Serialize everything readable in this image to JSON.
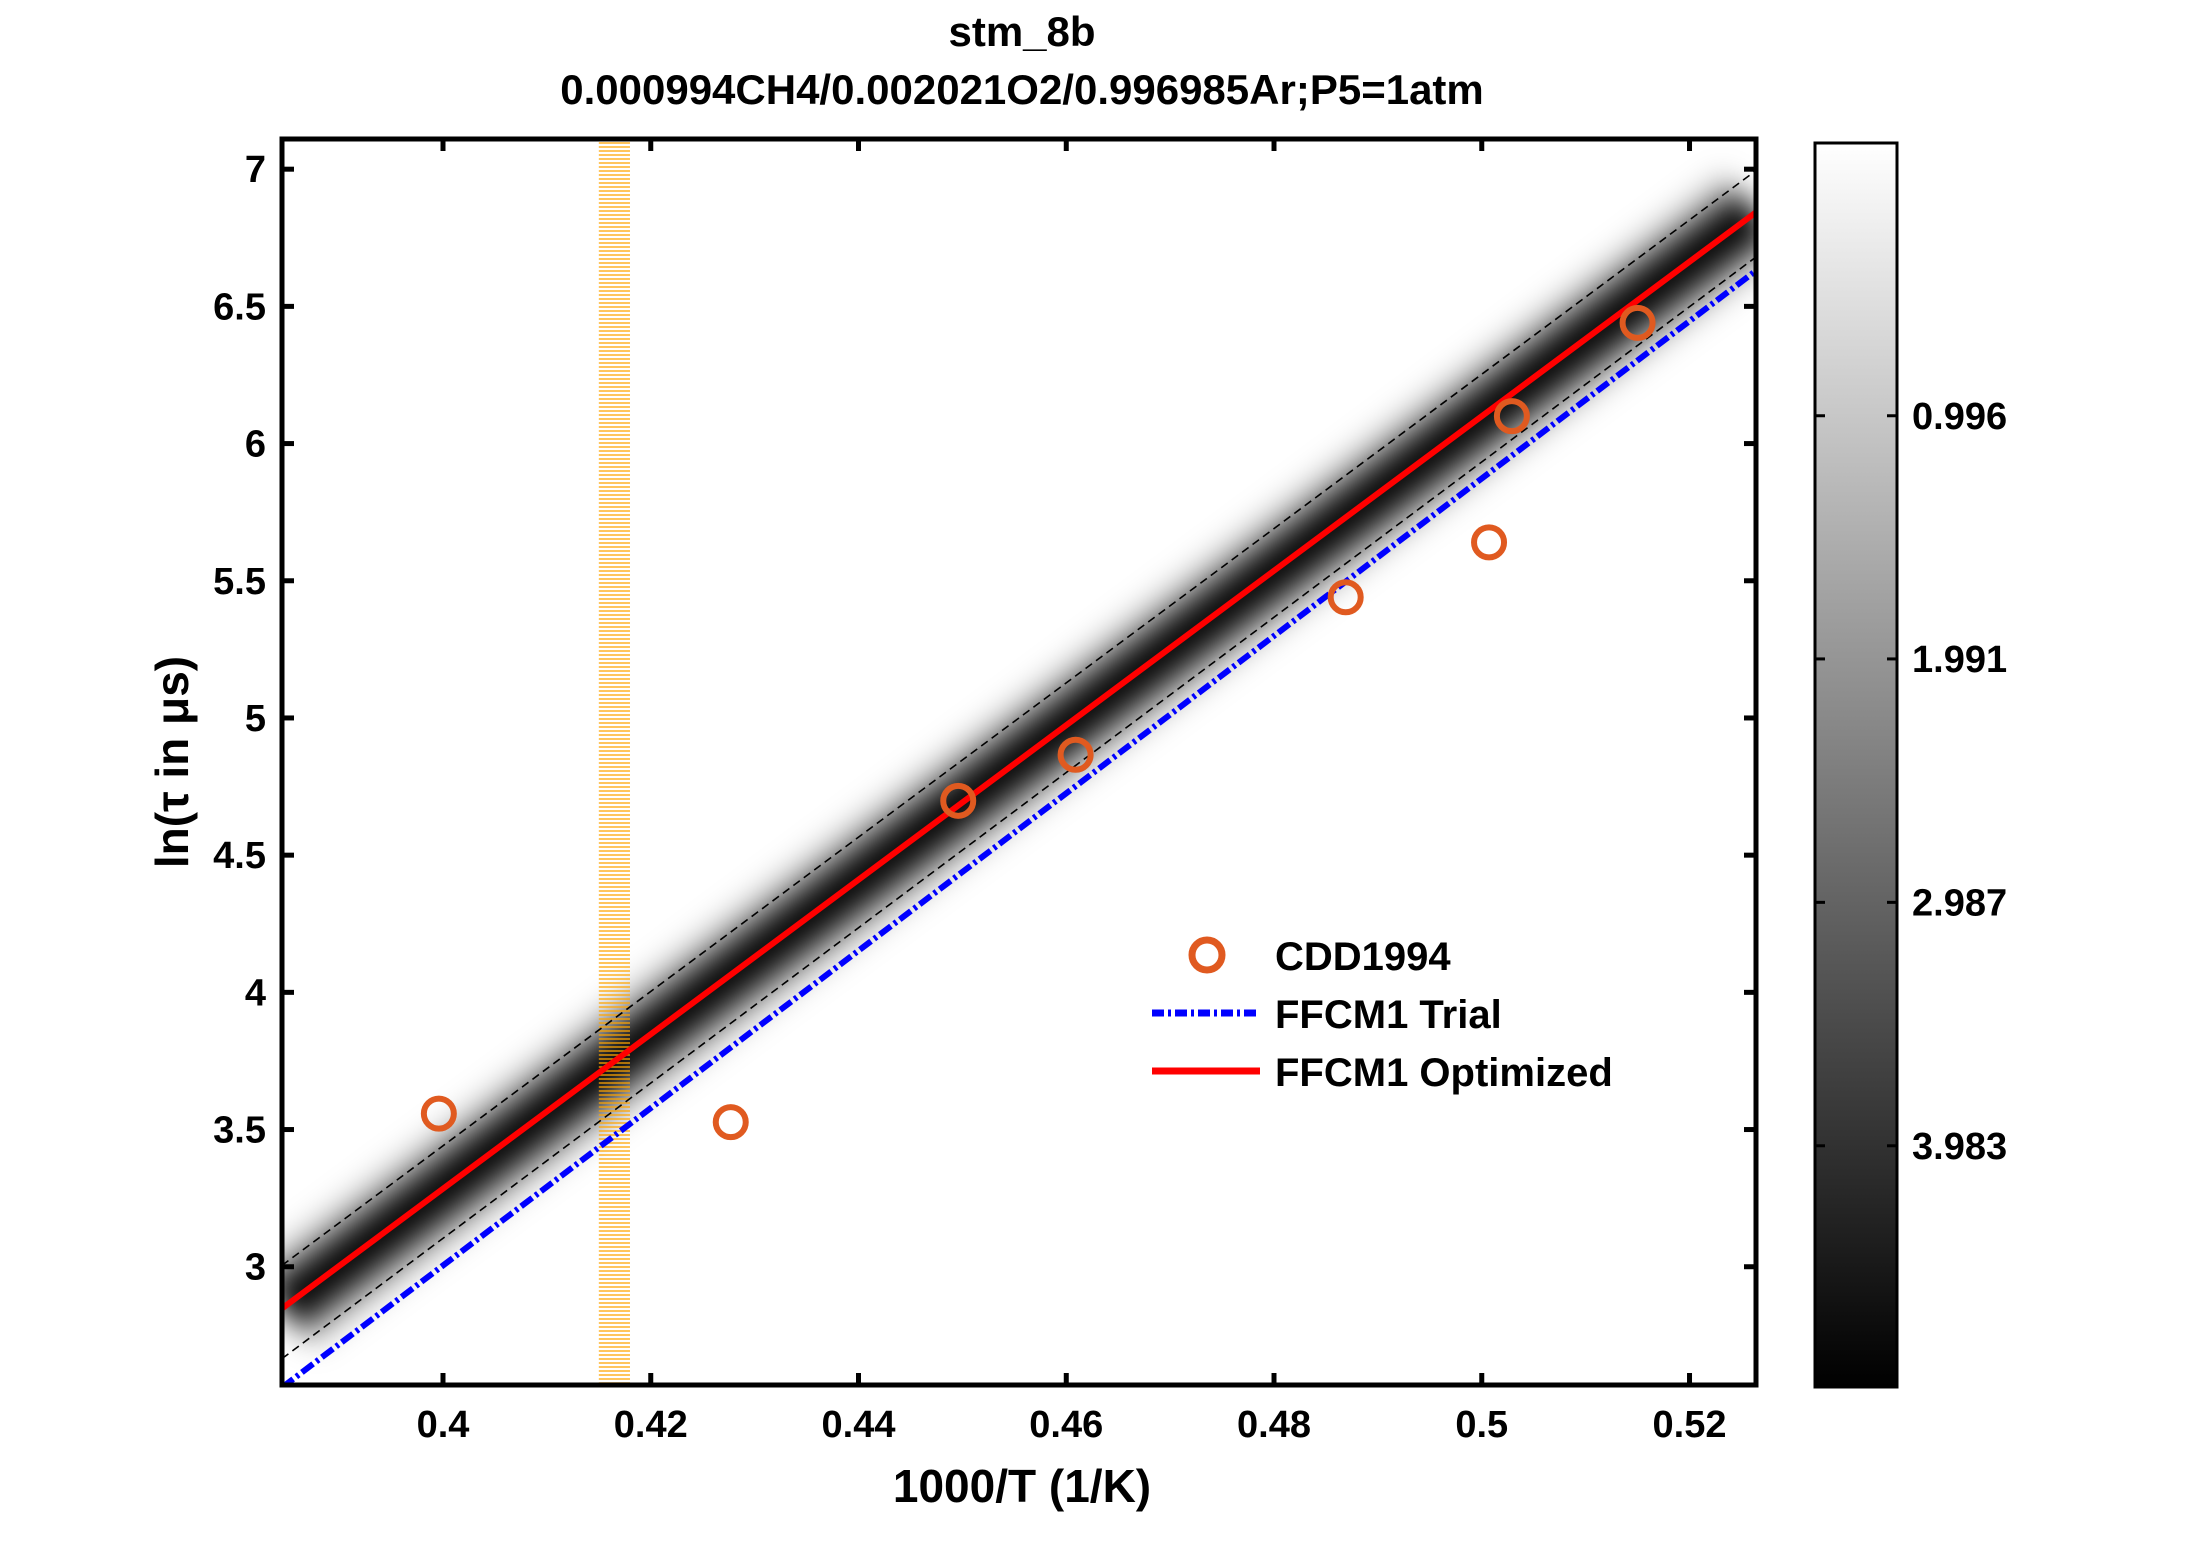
{
  "chart_data": {
    "type": "scatter",
    "title": "stm_8b",
    "subtitle": "0.000994CH4/0.002021O2/0.996985Ar;P5=1atm",
    "xlabel": "1000/T (1/K)",
    "ylabel": "ln(τ in μs)",
    "xlim": [
      0.3845,
      0.5264
    ],
    "ylim": [
      2.569,
      7.11
    ],
    "xticks": [
      "0.4",
      "0.42",
      "0.44",
      "0.46",
      "0.48",
      "0.5",
      "0.52"
    ],
    "yticks": [
      "3",
      "3.5",
      "4",
      "4.5",
      "5",
      "5.5",
      "6",
      "6.5",
      "7"
    ],
    "grid": false,
    "legend_placement": "center-right",
    "series": [
      {
        "name": "CDD1994",
        "kind": "markers",
        "marker": "circle-open",
        "color": "#E05A20",
        "x": [
          0.3996,
          0.4277,
          0.4496,
          0.4609,
          0.4869,
          0.5007,
          0.5029,
          0.515
        ],
        "y": [
          3.558,
          3.527,
          4.698,
          4.866,
          5.44,
          5.64,
          6.1,
          6.44
        ]
      },
      {
        "name": "FFCM1 Trial",
        "kind": "line",
        "style": "dash-dot",
        "color": "#0000FF",
        "x": [
          0.3845,
          0.5264
        ],
        "y": [
          2.56,
          6.63
        ]
      },
      {
        "name": "FFCM1 Optimized",
        "kind": "line",
        "style": "solid",
        "color": "#FF0000",
        "x": [
          0.3845,
          0.5264
        ],
        "y": [
          2.848,
          6.843
        ]
      }
    ],
    "uncertainty_bounds": {
      "style": "dashed",
      "color": "#000000",
      "upper": {
        "x": [
          0.3845,
          0.5264
        ],
        "y": [
          3.005,
          6.995
        ]
      },
      "lower": {
        "x": [
          0.3845,
          0.5264
        ],
        "y": [
          2.665,
          6.68
        ]
      }
    },
    "highlight_band": {
      "x": [
        0.415,
        0.418
      ],
      "color": "#FFA500"
    },
    "colorbar": {
      "colormap": "gray-reversed",
      "range": [
        -0.12,
        4.97
      ],
      "ticks": [
        0.996,
        1.991,
        2.987,
        3.983
      ],
      "tick_labels": [
        "0.996",
        "1.991",
        "2.987",
        "3.983"
      ]
    }
  }
}
